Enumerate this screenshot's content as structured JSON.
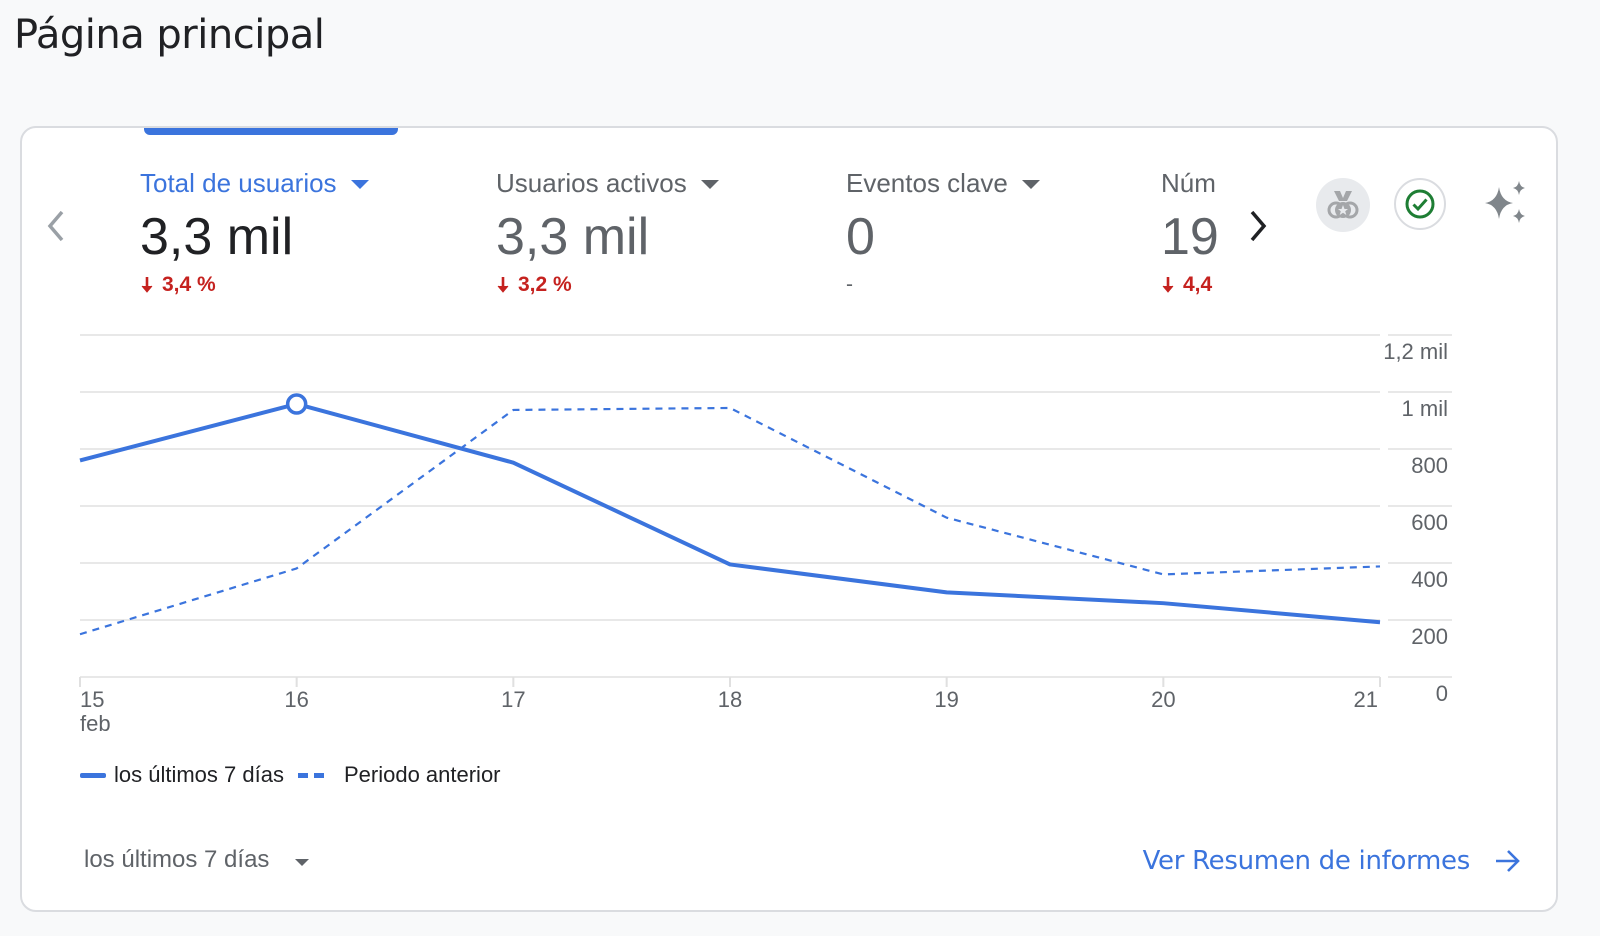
{
  "page": {
    "title": "Página principal"
  },
  "metrics": [
    {
      "label": "Total de usuarios",
      "value": "3,3 mil",
      "change": "3,4 %",
      "direction": "down",
      "active": true
    },
    {
      "label": "Usuarios activos",
      "value": "3,3 mil",
      "change": "3,2 %",
      "direction": "down",
      "active": false
    },
    {
      "label": "Eventos clave",
      "value": "0",
      "change": "-",
      "direction": "none",
      "active": false
    },
    {
      "label": "Núm",
      "value": "19",
      "change": "4,4",
      "direction": "down",
      "active": false
    }
  ],
  "icons": {
    "prev": "chevron-left-icon",
    "next": "chevron-right-icon",
    "badge": "medal-icon",
    "check": "check-circle-icon",
    "insights": "sparkle-icon"
  },
  "colors": {
    "accent": "#3b74dd",
    "negative": "#c5221f",
    "check": "#1e7e34",
    "muted": "#5f6368"
  },
  "chart_data": {
    "type": "line",
    "x": [
      "15",
      "16",
      "17",
      "18",
      "19",
      "20",
      "21"
    ],
    "x_sublabel_first": "feb",
    "series": [
      {
        "name": "los últimos 7 días",
        "style": "solid",
        "values": [
          760,
          958,
          752,
          395,
          297,
          259,
          192
        ]
      },
      {
        "name": "Periodo anterior",
        "style": "dashed",
        "values": [
          150,
          381,
          937,
          944,
          559,
          360,
          388
        ]
      }
    ],
    "highlight_index": 1,
    "y_ticks": [
      0,
      200,
      400,
      600,
      800,
      1000,
      1200
    ],
    "y_tick_labels": [
      "0",
      "200",
      "400",
      "600",
      "800",
      "1 mil",
      "1,2 mil"
    ],
    "ylim": [
      0,
      1200
    ],
    "grid": true,
    "y_axis_side": "right",
    "legend_position": "bottom-left",
    "title": "",
    "xlabel": "",
    "ylabel": ""
  },
  "legend": {
    "current": "los últimos 7 días",
    "previous": "Periodo anterior"
  },
  "footer": {
    "date_range": "los últimos 7 días",
    "report_link": "Ver Resumen de informes"
  }
}
